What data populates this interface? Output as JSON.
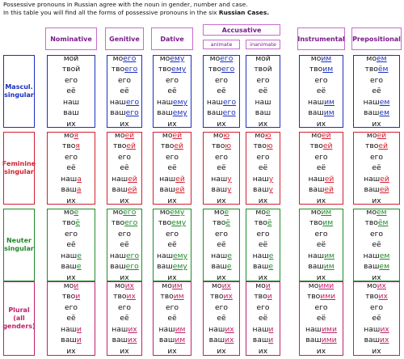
{
  "intro": {
    "line1": "Possessive pronouns in Russian agree with the noun in gender, number and case.",
    "line2_pre": "In this table you will find all the forms of possessive pronouns in the six ",
    "line2_bold": "Russian Cases."
  },
  "headers": {
    "nominative": "Nominative",
    "genitive": "Genitive",
    "dative": "Dative",
    "accusative": "Accusative",
    "animate": "animate",
    "inanimate": "inanimate",
    "instrumental": "Instrumental",
    "prepositional": "Prepositional"
  },
  "rows": {
    "masc": "Mascul. singular",
    "fem": "Feminine singular",
    "neut": "Neuter singular",
    "plural": "Plural (all genders)"
  },
  "colors": {
    "masc": "#1a30c0",
    "fem": "#d22030",
    "neut": "#1f8a2a",
    "plural": "#c0206a",
    "header": "#7a1a8a"
  },
  "table": {
    "masc": {
      "nom": [
        [
          "мой",
          ""
        ],
        [
          "твой",
          ""
        ],
        [
          "его",
          ""
        ],
        [
          "её",
          ""
        ],
        [
          "наш",
          ""
        ],
        [
          "ваш",
          ""
        ],
        [
          "их",
          ""
        ]
      ],
      "gen": [
        [
          "мо",
          "его"
        ],
        [
          "тво",
          "его"
        ],
        [
          "его",
          ""
        ],
        [
          "её",
          ""
        ],
        [
          "наш",
          "его"
        ],
        [
          "ваш",
          "его"
        ],
        [
          "их",
          ""
        ]
      ],
      "dat": [
        [
          "мо",
          "ему"
        ],
        [
          "тво",
          "ему"
        ],
        [
          "его",
          ""
        ],
        [
          "её",
          ""
        ],
        [
          "наш",
          "ему"
        ],
        [
          "ваш",
          "ему"
        ],
        [
          "их",
          ""
        ]
      ],
      "anim": [
        [
          "мо",
          "его"
        ],
        [
          "тво",
          "его"
        ],
        [
          "его",
          ""
        ],
        [
          "её",
          ""
        ],
        [
          "наш",
          "его"
        ],
        [
          "ваш",
          "его"
        ],
        [
          "их",
          ""
        ]
      ],
      "inan": [
        [
          "мой",
          ""
        ],
        [
          "твой",
          ""
        ],
        [
          "его",
          ""
        ],
        [
          "её",
          ""
        ],
        [
          "наш",
          ""
        ],
        [
          "ваш",
          ""
        ],
        [
          "их",
          ""
        ]
      ],
      "inst": [
        [
          "мо",
          "им"
        ],
        [
          "тво",
          "им"
        ],
        [
          "его",
          ""
        ],
        [
          "её",
          ""
        ],
        [
          "наш",
          "им"
        ],
        [
          "ваш",
          "им"
        ],
        [
          "их",
          ""
        ]
      ],
      "prep": [
        [
          "мо",
          "ём"
        ],
        [
          "тво",
          "ём"
        ],
        [
          "его",
          ""
        ],
        [
          "её",
          ""
        ],
        [
          "наш",
          "ем"
        ],
        [
          "ваш",
          "ем"
        ],
        [
          "их",
          ""
        ]
      ]
    },
    "fem": {
      "nom": [
        [
          "мо",
          "я"
        ],
        [
          "тво",
          "я"
        ],
        [
          "его",
          ""
        ],
        [
          "её",
          ""
        ],
        [
          "наш",
          "а"
        ],
        [
          "ваш",
          "а"
        ],
        [
          "их",
          ""
        ]
      ],
      "gen": [
        [
          "мо",
          "ей"
        ],
        [
          "тво",
          "ей"
        ],
        [
          "его",
          ""
        ],
        [
          "её",
          ""
        ],
        [
          "наш",
          "ей"
        ],
        [
          "ваш",
          "ей"
        ],
        [
          "их",
          ""
        ]
      ],
      "dat": [
        [
          "мо",
          "ей"
        ],
        [
          "тво",
          "ей"
        ],
        [
          "его",
          ""
        ],
        [
          "её",
          ""
        ],
        [
          "наш",
          "ей"
        ],
        [
          "ваш",
          "ей"
        ],
        [
          "их",
          ""
        ]
      ],
      "anim": [
        [
          "мо",
          "ю"
        ],
        [
          "тво",
          "ю"
        ],
        [
          "его",
          ""
        ],
        [
          "её",
          ""
        ],
        [
          "наш",
          "у"
        ],
        [
          "ваш",
          "у"
        ],
        [
          "их",
          ""
        ]
      ],
      "inan": [
        [
          "мо",
          "ю"
        ],
        [
          "тво",
          "ю"
        ],
        [
          "его",
          ""
        ],
        [
          "её",
          ""
        ],
        [
          "наш",
          "у"
        ],
        [
          "ваш",
          "у"
        ],
        [
          "их",
          ""
        ]
      ],
      "inst": [
        [
          "мо",
          "ей"
        ],
        [
          "тво",
          "ей"
        ],
        [
          "его",
          ""
        ],
        [
          "её",
          ""
        ],
        [
          "наш",
          "ей"
        ],
        [
          "ваш",
          "ей"
        ],
        [
          "их",
          ""
        ]
      ],
      "prep": [
        [
          "мо",
          "ей"
        ],
        [
          "тво",
          "ей"
        ],
        [
          "его",
          ""
        ],
        [
          "её",
          ""
        ],
        [
          "наш",
          "ей"
        ],
        [
          "ваш",
          "ей"
        ],
        [
          "их",
          ""
        ]
      ]
    },
    "neut": {
      "nom": [
        [
          "мо",
          "ё"
        ],
        [
          "тво",
          "ё"
        ],
        [
          "его",
          ""
        ],
        [
          "её",
          ""
        ],
        [
          "наш",
          "е"
        ],
        [
          "ваш",
          "е"
        ],
        [
          "их",
          ""
        ]
      ],
      "gen": [
        [
          "мо",
          "его"
        ],
        [
          "тво",
          "его"
        ],
        [
          "его",
          ""
        ],
        [
          "её",
          ""
        ],
        [
          "наш",
          "его"
        ],
        [
          "ваш",
          "его"
        ],
        [
          "их",
          ""
        ]
      ],
      "dat": [
        [
          "мо",
          "ему"
        ],
        [
          "тво",
          "ему"
        ],
        [
          "его",
          ""
        ],
        [
          "её",
          ""
        ],
        [
          "наш",
          "ему"
        ],
        [
          "ваш",
          "ему"
        ],
        [
          "их",
          ""
        ]
      ],
      "anim": [
        [
          "мо",
          "ё"
        ],
        [
          "тво",
          "ё"
        ],
        [
          "его",
          ""
        ],
        [
          "её",
          ""
        ],
        [
          "наш",
          "е"
        ],
        [
          "ваш",
          "е"
        ],
        [
          "их",
          ""
        ]
      ],
      "inan": [
        [
          "мо",
          "ё"
        ],
        [
          "тво",
          "ё"
        ],
        [
          "его",
          ""
        ],
        [
          "её",
          ""
        ],
        [
          "наш",
          "е"
        ],
        [
          "ваш",
          "е"
        ],
        [
          "их",
          ""
        ]
      ],
      "inst": [
        [
          "мо",
          "им"
        ],
        [
          "тво",
          "им"
        ],
        [
          "его",
          ""
        ],
        [
          "её",
          ""
        ],
        [
          "наш",
          "им"
        ],
        [
          "ваш",
          "им"
        ],
        [
          "их",
          ""
        ]
      ],
      "prep": [
        [
          "мо",
          "ём"
        ],
        [
          "тво",
          "ём"
        ],
        [
          "его",
          ""
        ],
        [
          "её",
          ""
        ],
        [
          "наш",
          "ем"
        ],
        [
          "ваш",
          "ем"
        ],
        [
          "их",
          ""
        ]
      ]
    },
    "plural": {
      "nom": [
        [
          "мо",
          "и"
        ],
        [
          "тво",
          "и"
        ],
        [
          "его",
          ""
        ],
        [
          "её",
          ""
        ],
        [
          "наш",
          "и"
        ],
        [
          "ваш",
          "и"
        ],
        [
          "их",
          ""
        ]
      ],
      "gen": [
        [
          "мо",
          "их"
        ],
        [
          "тво",
          "их"
        ],
        [
          "его",
          ""
        ],
        [
          "её",
          ""
        ],
        [
          "наш",
          "их"
        ],
        [
          "ваш",
          "их"
        ],
        [
          "их",
          ""
        ]
      ],
      "dat": [
        [
          "мо",
          "им"
        ],
        [
          "тво",
          "им"
        ],
        [
          "его",
          ""
        ],
        [
          "её",
          ""
        ],
        [
          "наш",
          "им"
        ],
        [
          "ваш",
          "им"
        ],
        [
          "их",
          ""
        ]
      ],
      "anim": [
        [
          "мо",
          "их"
        ],
        [
          "тво",
          "их"
        ],
        [
          "его",
          ""
        ],
        [
          "её",
          ""
        ],
        [
          "наш",
          "их"
        ],
        [
          "ваш",
          "их"
        ],
        [
          "их",
          ""
        ]
      ],
      "inan": [
        [
          "мо",
          "и"
        ],
        [
          "тво",
          "и"
        ],
        [
          "его",
          ""
        ],
        [
          "её",
          ""
        ],
        [
          "наш",
          "и"
        ],
        [
          "ваш",
          "и"
        ],
        [
          "их",
          ""
        ]
      ],
      "inst": [
        [
          "мо",
          "ими"
        ],
        [
          "тво",
          "ими"
        ],
        [
          "его",
          ""
        ],
        [
          "её",
          ""
        ],
        [
          "наш",
          "ими"
        ],
        [
          "ваш",
          "ими"
        ],
        [
          "их",
          ""
        ]
      ],
      "prep": [
        [
          "мо",
          "их"
        ],
        [
          "тво",
          "их"
        ],
        [
          "его",
          ""
        ],
        [
          "её",
          ""
        ],
        [
          "наш",
          "их"
        ],
        [
          "ваш",
          "их"
        ],
        [
          "их",
          ""
        ]
      ]
    }
  }
}
